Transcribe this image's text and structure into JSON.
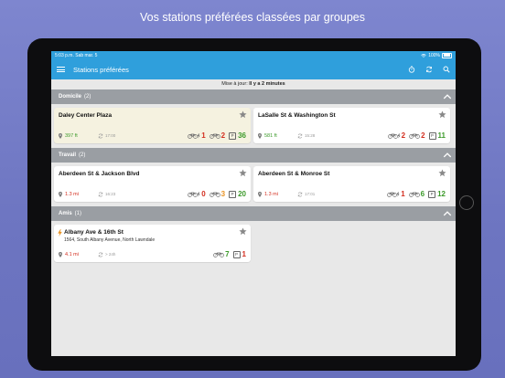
{
  "headline": "Vos stations préférées classées par groupes",
  "status": {
    "time": "5:03 p.m.",
    "date": "Sab mar. 5",
    "battery": "100%"
  },
  "appbar": {
    "title": "Stations préférées"
  },
  "update": {
    "label": "Mise à jour:",
    "value": "Il y a 2 minutes"
  },
  "colors": {
    "accent": "#2f9fdc",
    "red": "#d32e1f",
    "orange": "#e89222",
    "green": "#3c9a2a",
    "group_header": "#9a9ea3"
  },
  "groups": [
    {
      "name": "Domicile",
      "count": "(2)",
      "stations": [
        {
          "name": "Daley Center Plaza",
          "distance": "397 ft",
          "updated": "17:00",
          "electric": "1",
          "bikes": "2",
          "docks": "36"
        },
        {
          "name": "LaSalle St & Washington St",
          "distance": "581 ft",
          "updated": "15:28",
          "electric": "2",
          "bikes": "2",
          "docks": "11"
        }
      ]
    },
    {
      "name": "Travail",
      "count": "(2)",
      "stations": [
        {
          "name": "Aberdeen St & Jackson Blvd",
          "distance": "1.3 mi",
          "updated": "16:23",
          "electric": "0",
          "bikes": "3",
          "docks": "20"
        },
        {
          "name": "Aberdeen St & Monroe St",
          "distance": "1.3 mi",
          "updated": "17:01",
          "electric": "1",
          "bikes": "6",
          "docks": "12"
        }
      ]
    },
    {
      "name": "Amis",
      "count": "(1)",
      "stations": [
        {
          "name": "Albany Ave & 16th St",
          "address": "1564, South Albany Avenue, North Lawndale",
          "distance": "4.1 mi",
          "updated": "> 24h",
          "bikes": "7",
          "docks": "1"
        }
      ]
    }
  ],
  "icons": {
    "menu": "hamburger-icon",
    "timer": "stopwatch-icon",
    "refresh": "refresh-icon",
    "search": "search-icon",
    "collapse": "chevron-up-icon",
    "favorite": "star-icon",
    "location": "pin-icon",
    "bike": "bicycle-icon",
    "ebike": "electric-bicycle-icon",
    "dock": "parking-icon",
    "charging": "lightning-icon"
  }
}
